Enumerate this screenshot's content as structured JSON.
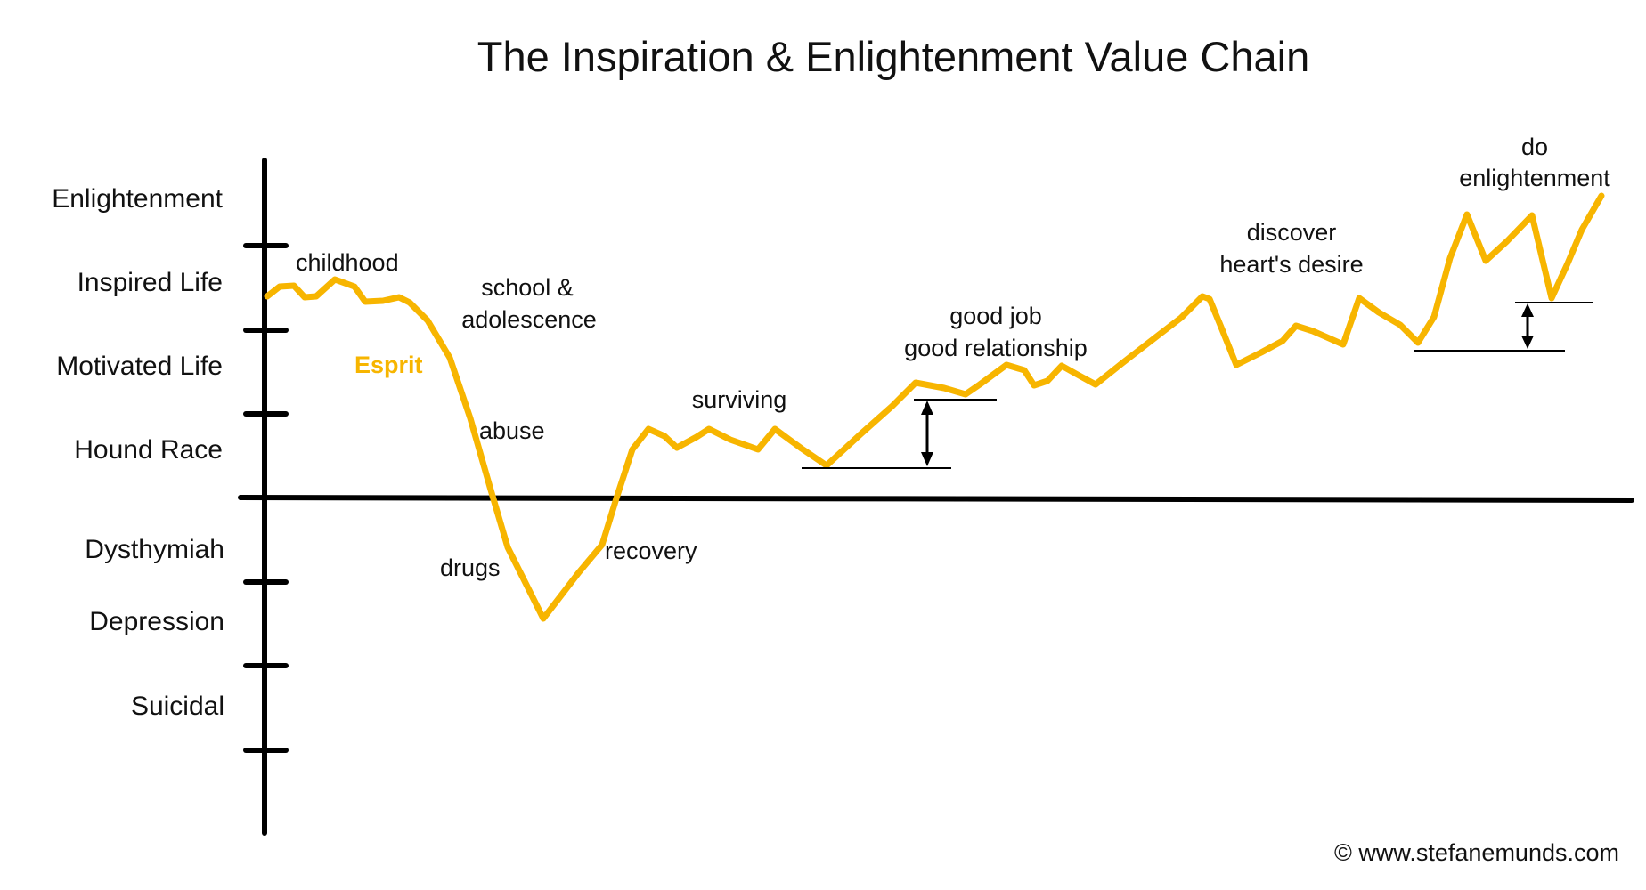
{
  "title": "The Inspiration & Enlightenment Value Chain",
  "levels": {
    "enlightenment": "Enlightenment",
    "inspired_life": "Inspired Life",
    "motivated_life": "Motivated Life",
    "hound_race": "Hound Race",
    "dysthymiah": "Dysthymiah",
    "depression": "Depression",
    "suicidal": "Suicidal"
  },
  "stages": {
    "childhood": "childhood",
    "school_line1": "school &",
    "school_line2": "adolescence",
    "esprit": "Esprit",
    "abuse": "abuse",
    "drugs": "drugs",
    "recovery": "recovery",
    "surviving": "surviving",
    "good_job": "good job",
    "good_relationship": "good relationship",
    "discover_line1": "discover",
    "discover_line2": "heart's desire",
    "do_line1": "do",
    "do_line2": "enlightenment"
  },
  "copyright": "© www.stefanemunds.com",
  "colors": {
    "life_line": "#F7B500",
    "axis": "#000000",
    "text": "#111111"
  }
}
